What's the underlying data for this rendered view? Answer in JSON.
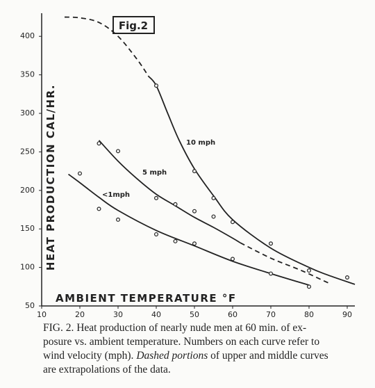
{
  "chart_data": {
    "type": "scatter-curves",
    "figure_label": "Fig.2",
    "y_label": "HEAT PRODUCTION CAL/HR.",
    "x_label": "AMBIENT TEMPERATURE °F",
    "color": "#222222",
    "xlim": [
      10,
      92
    ],
    "ylim": [
      50,
      430
    ],
    "xticks": [
      10,
      20,
      30,
      40,
      50,
      60,
      70,
      80,
      90
    ],
    "yticks": [
      50,
      100,
      150,
      200,
      250,
      300,
      350,
      400
    ],
    "series": [
      {
        "name": "10 mph",
        "x": [
          40,
          50,
          55,
          60,
          70,
          80,
          90
        ],
        "values": [
          336,
          225,
          190,
          159,
          131,
          96,
          87
        ],
        "curve_x": [
          38,
          40,
          43,
          46,
          50,
          55,
          60,
          70,
          80,
          85,
          92
        ],
        "curve_values": [
          348,
          336,
          300,
          265,
          228,
          193,
          162,
          125,
          100,
          90,
          78
        ],
        "dashed_x": [
          16,
          20,
          25,
          30,
          35,
          38
        ],
        "dashed_values": [
          425,
          424,
          418,
          400,
          370,
          348
        ]
      },
      {
        "name": "5 mph",
        "x": [
          25,
          30,
          40,
          45,
          50,
          55
        ],
        "values": [
          261,
          251,
          190,
          182,
          173,
          166
        ],
        "curve_x": [
          25,
          30,
          35,
          40,
          45,
          50,
          55,
          60,
          62
        ],
        "curve_values": [
          265,
          238,
          215,
          195,
          180,
          165,
          152,
          138,
          132
        ],
        "dashed_x": [
          62,
          70,
          78,
          85
        ],
        "dashed_values": [
          132,
          112,
          96,
          80
        ]
      },
      {
        "name": "<1mph",
        "x": [
          20,
          25,
          30,
          40,
          45,
          50,
          60,
          70,
          80
        ],
        "values": [
          222,
          176,
          162,
          143,
          134,
          131,
          111,
          92,
          75
        ],
        "curve_x": [
          17,
          20,
          25,
          30,
          40,
          50,
          60,
          70,
          80
        ],
        "curve_values": [
          221,
          210,
          191,
          174,
          148,
          128,
          108,
          92,
          77
        ]
      }
    ]
  },
  "caption": {
    "lines": [
      [
        "FIG. 2. Heat production of nearly nude men at 60 min. of ex-"
      ],
      [
        "posure vs. ambient temperature. Numbers on each curve refer to"
      ],
      [
        "wind velocity (mph). ",
        "Dashed portions",
        " of upper and middle curves"
      ],
      [
        "are extrapolations of the data."
      ]
    ]
  }
}
